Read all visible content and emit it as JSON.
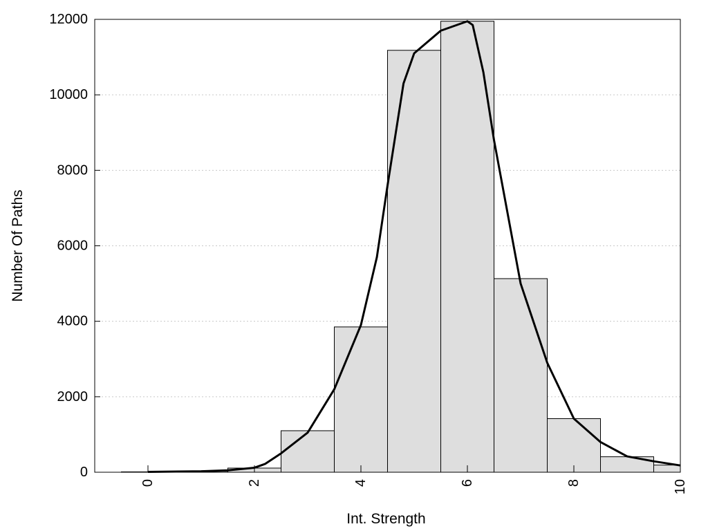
{
  "chart_data": {
    "type": "bar",
    "title": "",
    "xlabel": "Int. Strength",
    "ylabel": "Number Of Paths",
    "xlim": [
      -1,
      10
    ],
    "ylim": [
      0,
      12000
    ],
    "grid": {
      "y": true,
      "x": false
    },
    "x_ticks": [
      0,
      2,
      4,
      6,
      8,
      10
    ],
    "x_tick_labels": [
      "0",
      "2",
      "4",
      "6",
      "8",
      "10"
    ],
    "y_ticks": [
      0,
      2000,
      4000,
      6000,
      8000,
      10000,
      12000
    ],
    "y_tick_labels": [
      "0",
      "2000",
      "4000",
      "6000",
      "8000",
      "10000",
      "12000"
    ],
    "bar_width": 1,
    "bars": [
      {
        "x": 0,
        "value": 10
      },
      {
        "x": 1,
        "value": 25
      },
      {
        "x": 2,
        "value": 110
      },
      {
        "x": 3,
        "value": 1100
      },
      {
        "x": 4,
        "value": 3850
      },
      {
        "x": 5,
        "value": 11180
      },
      {
        "x": 6,
        "value": 11950
      },
      {
        "x": 7,
        "value": 5130
      },
      {
        "x": 8,
        "value": 1420
      },
      {
        "x": 9,
        "value": 410
      },
      {
        "x": 10,
        "value": 190
      }
    ],
    "fit_curve": {
      "x": [
        0,
        1,
        1.5,
        2,
        2.2,
        2.5,
        3,
        3.5,
        4,
        4.3,
        4.5,
        4.8,
        5,
        5.5,
        6,
        6.1,
        6.3,
        6.5,
        7,
        7.5,
        8,
        8.5,
        9,
        9.5,
        10
      ],
      "y": [
        10,
        25,
        50,
        120,
        220,
        500,
        1050,
        2200,
        3900,
        5700,
        7600,
        10300,
        11100,
        11700,
        11950,
        11850,
        10600,
        8800,
        5000,
        2900,
        1420,
        800,
        420,
        290,
        180
      ]
    }
  }
}
